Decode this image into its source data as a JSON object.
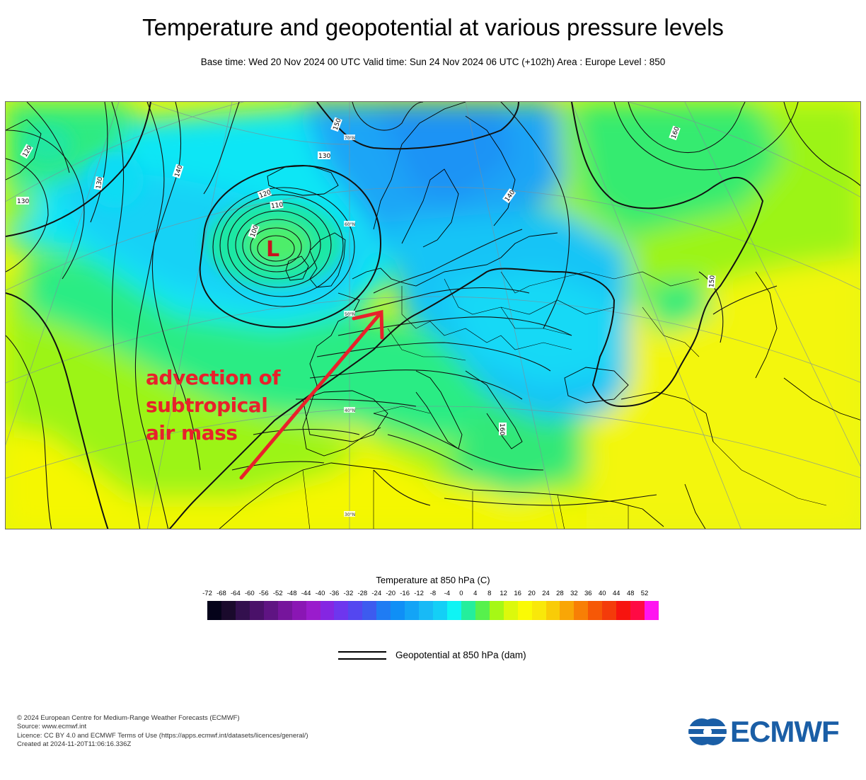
{
  "header": {
    "title": "Temperature and geopotential at various pressure levels",
    "subtitle": "Base time: Wed 20 Nov 2024 00 UTC Valid time: Sun 24 Nov 2024 06 UTC (+102h) Area : Europe Level : 850"
  },
  "map": {
    "low_label": "L",
    "contour_labels": [
      "150",
      "130",
      "140",
      "130",
      "120",
      "110",
      "100",
      "130",
      "140",
      "160",
      "150",
      "160",
      "120"
    ],
    "latitude_labels": [
      "50°N",
      "40°N",
      "30°N",
      "70°N",
      "60°N"
    ],
    "annotation": {
      "lines": [
        "advection of",
        "subtropical",
        "air mass"
      ],
      "color": "#e8212b"
    }
  },
  "colorbar": {
    "title": "Temperature at 850 hPa (C)",
    "ticks": [
      "-72",
      "-68",
      "-64",
      "-60",
      "-56",
      "-52",
      "-48",
      "-44",
      "-40",
      "-36",
      "-32",
      "-28",
      "-24",
      "-20",
      "-16",
      "-12",
      "-8",
      "-4",
      "0",
      "4",
      "8",
      "12",
      "16",
      "20",
      "24",
      "28",
      "32",
      "36",
      "40",
      "44",
      "48",
      "52"
    ],
    "colors": [
      "#05031a",
      "#1a0a2c",
      "#33104e",
      "#4a1169",
      "#5f1483",
      "#76159c",
      "#8a16b4",
      "#9a1ccc",
      "#8526e2",
      "#6e36ee",
      "#5447f0",
      "#3d5bef",
      "#1f7cf3",
      "#0f8ff6",
      "#13a4f6",
      "#18baf6",
      "#14cff6",
      "#0ff4f4",
      "#24ee9c",
      "#57f14c",
      "#a6f815",
      "#dcf90c",
      "#fafa05",
      "#f9e80a",
      "#f9cc07",
      "#f9a606",
      "#f87f05",
      "#f65806",
      "#f43b0a",
      "#f7140f",
      "#ff0a44",
      "#ff14f0"
    ]
  },
  "legend": {
    "geopotential_label": "Geopotential at 850 hPa (dam)"
  },
  "footer": {
    "lines": [
      "© 2024 European Centre for Medium-Range Weather Forecasts (ECMWF)",
      "Source: www.ecmwf.int",
      "Licence: CC BY 4.0 and ECMWF Terms of Use (https://apps.ecmwf.int/datasets/licences/general/)",
      "Created at 2024-11-20T11:06:16.336Z"
    ]
  },
  "logo": {
    "name": "ECMWF",
    "color": "#1a5ea6"
  }
}
